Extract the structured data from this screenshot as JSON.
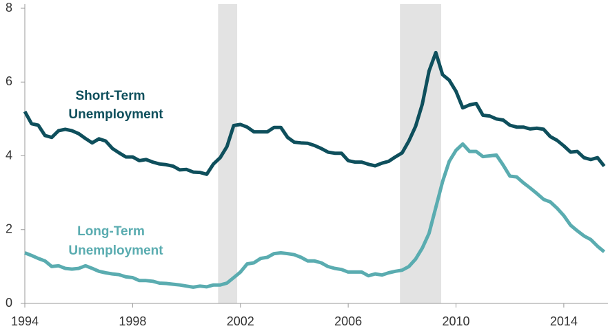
{
  "chart_data": {
    "type": "line",
    "x": [
      1994,
      1994.25,
      1994.5,
      1994.75,
      1995,
      1995.25,
      1995.5,
      1995.75,
      1996,
      1996.25,
      1996.5,
      1996.75,
      1997,
      1997.25,
      1997.5,
      1997.75,
      1998,
      1998.25,
      1998.5,
      1998.75,
      1999,
      1999.25,
      1999.5,
      1999.75,
      2000,
      2000.25,
      2000.5,
      2000.75,
      2001,
      2001.25,
      2001.5,
      2001.75,
      2002,
      2002.25,
      2002.5,
      2002.75,
      2003,
      2003.25,
      2003.5,
      2003.75,
      2004,
      2004.25,
      2004.5,
      2004.75,
      2005,
      2005.25,
      2005.5,
      2005.75,
      2006,
      2006.25,
      2006.5,
      2006.75,
      2007,
      2007.25,
      2007.5,
      2007.75,
      2008,
      2008.25,
      2008.5,
      2008.75,
      2009,
      2009.25,
      2009.5,
      2009.75,
      2010,
      2010.25,
      2010.5,
      2010.75,
      2011,
      2011.25,
      2011.5,
      2011.75,
      2012,
      2012.25,
      2012.5,
      2012.75,
      2013,
      2013.25,
      2013.5,
      2013.75,
      2014,
      2014.25,
      2014.5,
      2014.75,
      2015,
      2015.25,
      2015.5
    ],
    "series": [
      {
        "name": "Short-Term Unemployment",
        "color": "#0e4f5c",
        "values": [
          5.2,
          4.87,
          4.83,
          4.55,
          4.5,
          4.68,
          4.72,
          4.68,
          4.6,
          4.47,
          4.35,
          4.46,
          4.4,
          4.2,
          4.08,
          3.97,
          3.97,
          3.87,
          3.9,
          3.83,
          3.78,
          3.76,
          3.72,
          3.62,
          3.63,
          3.56,
          3.55,
          3.5,
          3.78,
          3.95,
          4.25,
          4.82,
          4.85,
          4.78,
          4.65,
          4.65,
          4.65,
          4.77,
          4.77,
          4.5,
          4.37,
          4.35,
          4.34,
          4.28,
          4.2,
          4.1,
          4.07,
          4.07,
          3.87,
          3.83,
          3.83,
          3.77,
          3.73,
          3.8,
          3.85,
          3.97,
          4.08,
          4.4,
          4.8,
          5.4,
          6.3,
          6.8,
          6.2,
          6.05,
          5.75,
          5.3,
          5.38,
          5.42,
          5.1,
          5.08,
          5.0,
          4.97,
          4.83,
          4.78,
          4.78,
          4.73,
          4.75,
          4.72,
          4.52,
          4.42,
          4.27,
          4.1,
          4.12,
          3.95,
          3.9,
          3.95,
          3.72
        ]
      },
      {
        "name": "Long-Term Unemployment",
        "color": "#5aacb0",
        "values": [
          1.37,
          1.3,
          1.22,
          1.15,
          1.0,
          1.02,
          0.95,
          0.93,
          0.95,
          1.02,
          0.95,
          0.87,
          0.83,
          0.8,
          0.78,
          0.72,
          0.7,
          0.62,
          0.62,
          0.6,
          0.55,
          0.54,
          0.52,
          0.5,
          0.47,
          0.44,
          0.47,
          0.45,
          0.5,
          0.5,
          0.55,
          0.7,
          0.85,
          1.07,
          1.1,
          1.22,
          1.25,
          1.35,
          1.37,
          1.35,
          1.32,
          1.25,
          1.15,
          1.15,
          1.1,
          1.0,
          0.95,
          0.92,
          0.85,
          0.85,
          0.85,
          0.75,
          0.8,
          0.77,
          0.83,
          0.87,
          0.9,
          1.0,
          1.2,
          1.5,
          1.9,
          2.6,
          3.3,
          3.85,
          4.15,
          4.32,
          4.12,
          4.12,
          3.98,
          4.0,
          4.02,
          3.75,
          3.45,
          3.43,
          3.27,
          3.13,
          2.98,
          2.82,
          2.75,
          2.58,
          2.38,
          2.12,
          1.97,
          1.83,
          1.73,
          1.55,
          1.4
        ]
      }
    ],
    "annotations": [
      [
        "Short-Term",
        "Unemployment"
      ],
      [
        "Long-Term",
        "Unemployment"
      ]
    ],
    "recessions": [
      [
        2001.17,
        2001.88
      ],
      [
        2007.92,
        2009.45
      ]
    ],
    "recession_color": "#e3e3e3",
    "xlim": [
      1994,
      2015.64
    ],
    "xticks": [
      1994,
      1998,
      2002,
      2006,
      2010,
      2014
    ],
    "ylim": [
      0,
      8
    ],
    "yticks": [
      0,
      2,
      4,
      6,
      8
    ],
    "grid": false
  }
}
